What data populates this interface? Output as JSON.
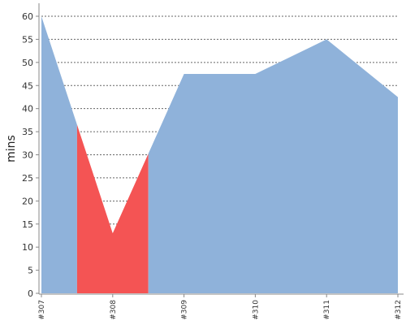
{
  "chart_data": {
    "type": "area",
    "ylabel": "mins",
    "ylim": [
      0,
      60
    ],
    "y_ticks": [
      0,
      5,
      10,
      15,
      20,
      25,
      30,
      35,
      40,
      45,
      50,
      55,
      60
    ],
    "grid": true,
    "x": [
      "#307",
      "#308",
      "#309",
      "#310",
      "#311",
      "#312"
    ],
    "values": [
      60,
      13,
      47.5,
      47.5,
      55,
      42.5
    ],
    "colors": {
      "default": "#8fb2da",
      "highlight": "#f45454"
    },
    "highlight_range": [
      "#307.5",
      "#308.5"
    ]
  }
}
